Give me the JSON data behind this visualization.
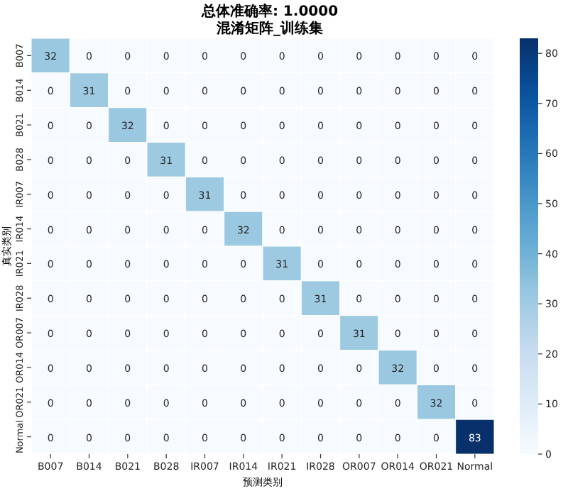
{
  "chart_data": {
    "type": "heatmap",
    "title": "总体准确率: 1.0000",
    "subtitle": "混淆矩阵_训练集",
    "xlabel": "预测类别",
    "ylabel": "真实类别",
    "categories": [
      "B007",
      "B014",
      "B021",
      "B028",
      "IR007",
      "IR014",
      "IR021",
      "IR028",
      "OR007",
      "OR014",
      "OR021",
      "Normal"
    ],
    "y_categories": [
      "B007",
      "B014",
      "B021",
      "B028",
      "IR007",
      "IR014",
      "IR021",
      "IR028",
      "OR007",
      "OR014",
      "OR021",
      "Normal"
    ],
    "cells": [
      [
        32,
        0,
        0,
        0,
        0,
        0,
        0,
        0,
        0,
        0,
        0,
        0
      ],
      [
        0,
        31,
        0,
        0,
        0,
        0,
        0,
        0,
        0,
        0,
        0,
        0
      ],
      [
        0,
        0,
        32,
        0,
        0,
        0,
        0,
        0,
        0,
        0,
        0,
        0
      ],
      [
        0,
        0,
        0,
        31,
        0,
        0,
        0,
        0,
        0,
        0,
        0,
        0
      ],
      [
        0,
        0,
        0,
        0,
        31,
        0,
        0,
        0,
        0,
        0,
        0,
        0
      ],
      [
        0,
        0,
        0,
        0,
        0,
        32,
        0,
        0,
        0,
        0,
        0,
        0
      ],
      [
        0,
        0,
        0,
        0,
        0,
        0,
        31,
        0,
        0,
        0,
        0,
        0
      ],
      [
        0,
        0,
        0,
        0,
        0,
        0,
        0,
        31,
        0,
        0,
        0,
        0
      ],
      [
        0,
        0,
        0,
        0,
        0,
        0,
        0,
        0,
        31,
        0,
        0,
        0
      ],
      [
        0,
        0,
        0,
        0,
        0,
        0,
        0,
        0,
        0,
        32,
        0,
        0
      ],
      [
        0,
        0,
        0,
        0,
        0,
        0,
        0,
        0,
        0,
        0,
        32,
        0
      ],
      [
        0,
        0,
        0,
        0,
        0,
        0,
        0,
        0,
        0,
        0,
        0,
        83
      ]
    ],
    "clim": [
      0,
      83
    ],
    "cticks": [
      0,
      10,
      20,
      30,
      40,
      50,
      60,
      70,
      80
    ],
    "data_labels": true
  }
}
